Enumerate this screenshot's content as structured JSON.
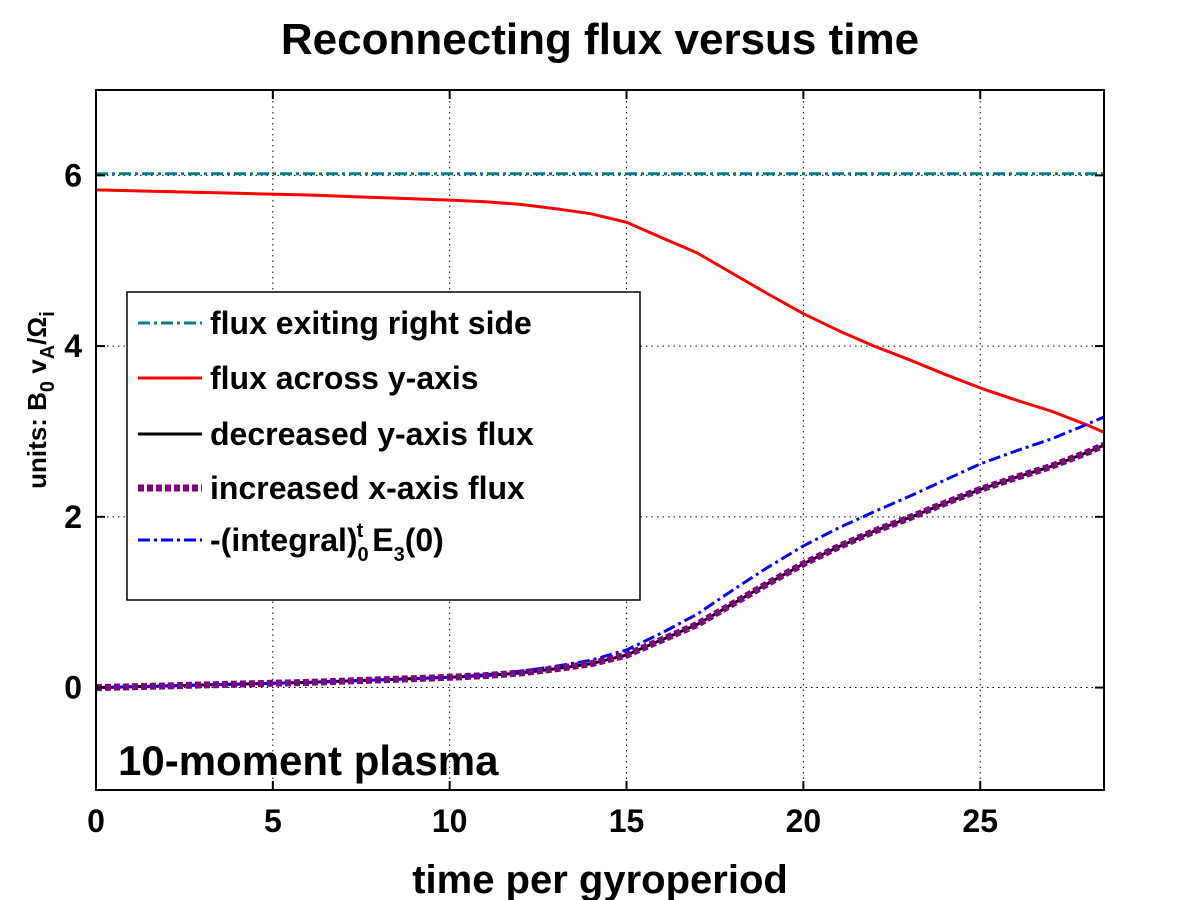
{
  "chart_data": {
    "type": "line",
    "title": "Reconnecting flux versus time",
    "xlabel": "time per gyroperiod",
    "ylabel": {
      "prefix": "units: B",
      "sub1": "0",
      "mid1": " v",
      "sub2": "A",
      "mid2": "/Ω",
      "sub3": "i"
    },
    "xlim": [
      0,
      28.5
    ],
    "ylim": [
      -1.2,
      7
    ],
    "xticks": [
      "0",
      "5",
      "10",
      "15",
      "20",
      "25"
    ],
    "yticks": [
      "0",
      "2",
      "4",
      "6"
    ],
    "grid": true,
    "legend_position": "upper-left",
    "annotation": "10-moment plasma",
    "series": [
      {
        "name": "flux exiting right side",
        "color": "#008080",
        "style": "dashdot",
        "x": [
          0,
          5,
          10,
          15,
          20,
          25,
          28.5
        ],
        "y": [
          6.02,
          6.02,
          6.02,
          6.02,
          6.02,
          6.02,
          6.02
        ]
      },
      {
        "name": "flux across y-axis",
        "color": "#ff0000",
        "style": "solid",
        "x": [
          0,
          2,
          4,
          6,
          8,
          10,
          11,
          12,
          13,
          14,
          15,
          16,
          17,
          18,
          19,
          20,
          21,
          22,
          23,
          24,
          25,
          26,
          27,
          28,
          28.5
        ],
        "y": [
          5.83,
          5.81,
          5.79,
          5.77,
          5.74,
          5.71,
          5.69,
          5.66,
          5.61,
          5.55,
          5.45,
          5.27,
          5.09,
          4.85,
          4.61,
          4.38,
          4.18,
          4.0,
          3.84,
          3.67,
          3.51,
          3.37,
          3.24,
          3.08,
          2.99
        ]
      },
      {
        "name": "decreased y-axis flux",
        "color": "#000000",
        "style": "solid",
        "x": [
          0,
          2,
          4,
          6,
          8,
          10,
          11,
          12,
          13,
          14,
          15,
          16,
          17,
          18,
          19,
          20,
          21,
          22,
          23,
          24,
          25,
          26,
          27,
          28,
          28.5
        ],
        "y": [
          0.0,
          0.02,
          0.04,
          0.06,
          0.09,
          0.12,
          0.14,
          0.17,
          0.22,
          0.28,
          0.38,
          0.56,
          0.74,
          0.98,
          1.22,
          1.45,
          1.65,
          1.83,
          1.99,
          2.16,
          2.32,
          2.46,
          2.59,
          2.75,
          2.84
        ]
      },
      {
        "name": "increased x-axis flux",
        "color": "#800080",
        "style": "dotted",
        "x": [
          0,
          2,
          4,
          6,
          8,
          10,
          11,
          12,
          13,
          14,
          15,
          16,
          17,
          18,
          19,
          20,
          21,
          22,
          23,
          24,
          25,
          26,
          27,
          28,
          28.5
        ],
        "y": [
          0.0,
          0.02,
          0.04,
          0.06,
          0.09,
          0.12,
          0.14,
          0.17,
          0.22,
          0.28,
          0.38,
          0.56,
          0.74,
          0.98,
          1.22,
          1.45,
          1.65,
          1.83,
          1.99,
          2.16,
          2.32,
          2.46,
          2.59,
          2.75,
          2.84
        ]
      },
      {
        "name": "-(integral)_0^t E_3(0)",
        "label_parts": {
          "a": "-(integral)",
          "sub": "0",
          "sup": "t",
          "b": " E",
          "sub2": "3",
          "c": "(0)"
        },
        "color": "#0000ff",
        "style": "dashdot",
        "x": [
          0,
          2,
          4,
          6,
          8,
          10,
          11,
          12,
          13,
          14,
          15,
          16,
          17,
          18,
          19,
          20,
          21,
          22,
          23,
          24,
          25,
          26,
          27,
          28,
          28.5
        ],
        "y": [
          0.0,
          0.02,
          0.04,
          0.06,
          0.09,
          0.12,
          0.15,
          0.19,
          0.25,
          0.32,
          0.44,
          0.64,
          0.86,
          1.14,
          1.41,
          1.66,
          1.87,
          2.06,
          2.24,
          2.43,
          2.62,
          2.77,
          2.91,
          3.08,
          3.17
        ]
      }
    ]
  }
}
